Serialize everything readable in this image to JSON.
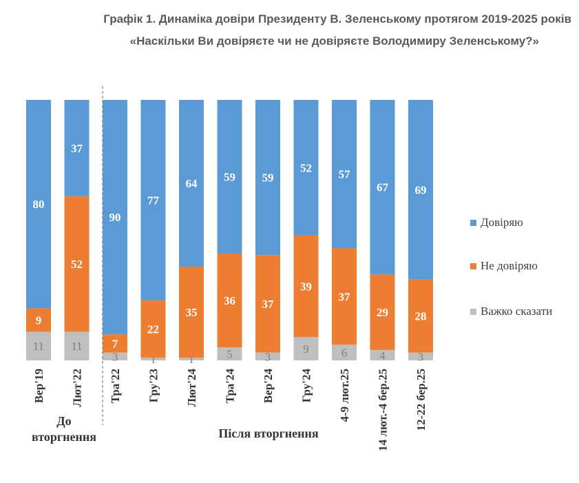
{
  "title": {
    "line1": "Графік 1. Динаміка довіри Президенту В. Зеленському протягом 2019-2025 років",
    "line2": "«Наскільки Ви довіряєте чи не довіряєте Володимиру Зеленському?»"
  },
  "chart_data": {
    "type": "stacked-bar",
    "title": "Графік 1. Динаміка довіри Президенту В. Зеленському протягом 2019-2025 років",
    "categories": [
      "Вер'19",
      "Лют'22",
      "Тра'22",
      "Гру'23",
      "Лют'24",
      "Тра'24",
      "Вер'24",
      "Гру'24",
      "4-9 лют.25",
      "14 лют.-4 бер.25",
      "12-22 бер.25"
    ],
    "series": [
      {
        "name": "Довіряю",
        "color": "#5B9BD5",
        "values": [
          80,
          37,
          90,
          77,
          64,
          59,
          59,
          52,
          57,
          67,
          69
        ]
      },
      {
        "name": "Не довіряю",
        "color": "#ED7D31",
        "values": [
          9,
          52,
          7,
          22,
          35,
          36,
          37,
          39,
          37,
          29,
          28
        ]
      },
      {
        "name": "Важко сказати",
        "color": "#BFBFBF",
        "values": [
          11,
          11,
          3,
          1,
          1,
          5,
          3,
          9,
          6,
          4,
          3
        ]
      }
    ],
    "groups": [
      {
        "label": "До вторгнення",
        "categories": [
          "Вер'19",
          "Лют'22"
        ]
      },
      {
        "label": "Після вторгнення",
        "categories": [
          "Тра'22",
          "Гру'23",
          "Лют'24",
          "Тра'24",
          "Вер'24",
          "Гру'24",
          "4-9 лют.25",
          "14 лют.-4 бер.25",
          "12-22 бер.25"
        ]
      }
    ],
    "legend_position": "right",
    "grid": false,
    "ylim": [
      0,
      100
    ]
  }
}
